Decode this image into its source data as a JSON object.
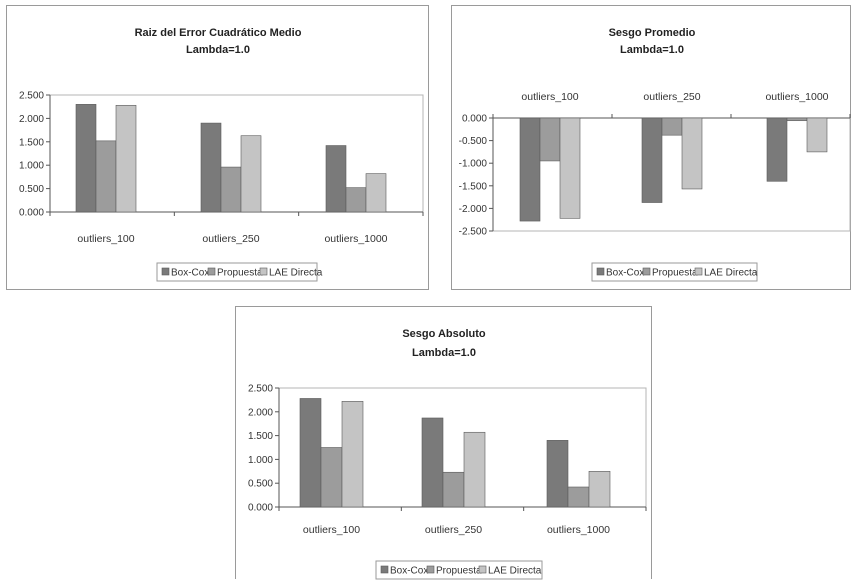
{
  "chart_data": [
    {
      "type": "bar",
      "title": "Raiz del Error Cuadrático Medio",
      "subtitle": "Lambda=1.0",
      "categories": [
        "outliers_100",
        "outliers_250",
        "outliers_1000"
      ],
      "series": [
        {
          "name": "Box-Cox",
          "color": "#7a7a7a",
          "values": [
            2.3,
            1.9,
            1.42
          ]
        },
        {
          "name": "Propuesta",
          "color": "#9c9c9c",
          "values": [
            1.52,
            0.96,
            0.52
          ]
        },
        {
          "name": "LAE Directa",
          "color": "#c4c4c4",
          "values": [
            2.28,
            1.63,
            0.82
          ]
        }
      ],
      "ylim": [
        0,
        2.5
      ],
      "yticks": [
        "2.500",
        "2.000",
        "1.500",
        "1.000",
        "0.500",
        "0.000"
      ],
      "category_axis": "bottom",
      "grid": false,
      "legend": "bottom"
    },
    {
      "type": "bar",
      "title": "Sesgo Promedio",
      "subtitle": "Lambda=1.0",
      "categories": [
        "outliers_100",
        "outliers_250",
        "outliers_1000"
      ],
      "series": [
        {
          "name": "Box-Cox",
          "color": "#7a7a7a",
          "values": [
            -2.28,
            -1.87,
            -1.4
          ]
        },
        {
          "name": "Propuesta",
          "color": "#9c9c9c",
          "values": [
            -0.95,
            -0.38,
            -0.06
          ]
        },
        {
          "name": "LAE Directa",
          "color": "#c4c4c4",
          "values": [
            -2.22,
            -1.57,
            -0.75
          ]
        }
      ],
      "ylim": [
        -2.5,
        0
      ],
      "yticks": [
        "0.000",
        "-0.500",
        "-1.000",
        "-1.500",
        "-2.000",
        "-2.500"
      ],
      "category_axis": "top",
      "grid": false,
      "legend": "bottom"
    },
    {
      "type": "bar",
      "title": "Sesgo Absoluto",
      "subtitle": "Lambda=1.0",
      "categories": [
        "outliers_100",
        "outliers_250",
        "outliers_1000"
      ],
      "series": [
        {
          "name": "Box-Cox",
          "color": "#7a7a7a",
          "values": [
            2.28,
            1.87,
            1.4
          ]
        },
        {
          "name": "Propuesta",
          "color": "#9c9c9c",
          "values": [
            1.25,
            0.73,
            0.42
          ]
        },
        {
          "name": "LAE Directa",
          "color": "#c4c4c4",
          "values": [
            2.22,
            1.57,
            0.75
          ]
        }
      ],
      "ylim": [
        0,
        2.5
      ],
      "yticks": [
        "2.500",
        "2.000",
        "1.500",
        "1.000",
        "0.500",
        "0.000"
      ],
      "category_axis": "bottom",
      "grid": false,
      "legend": "bottom"
    }
  ]
}
